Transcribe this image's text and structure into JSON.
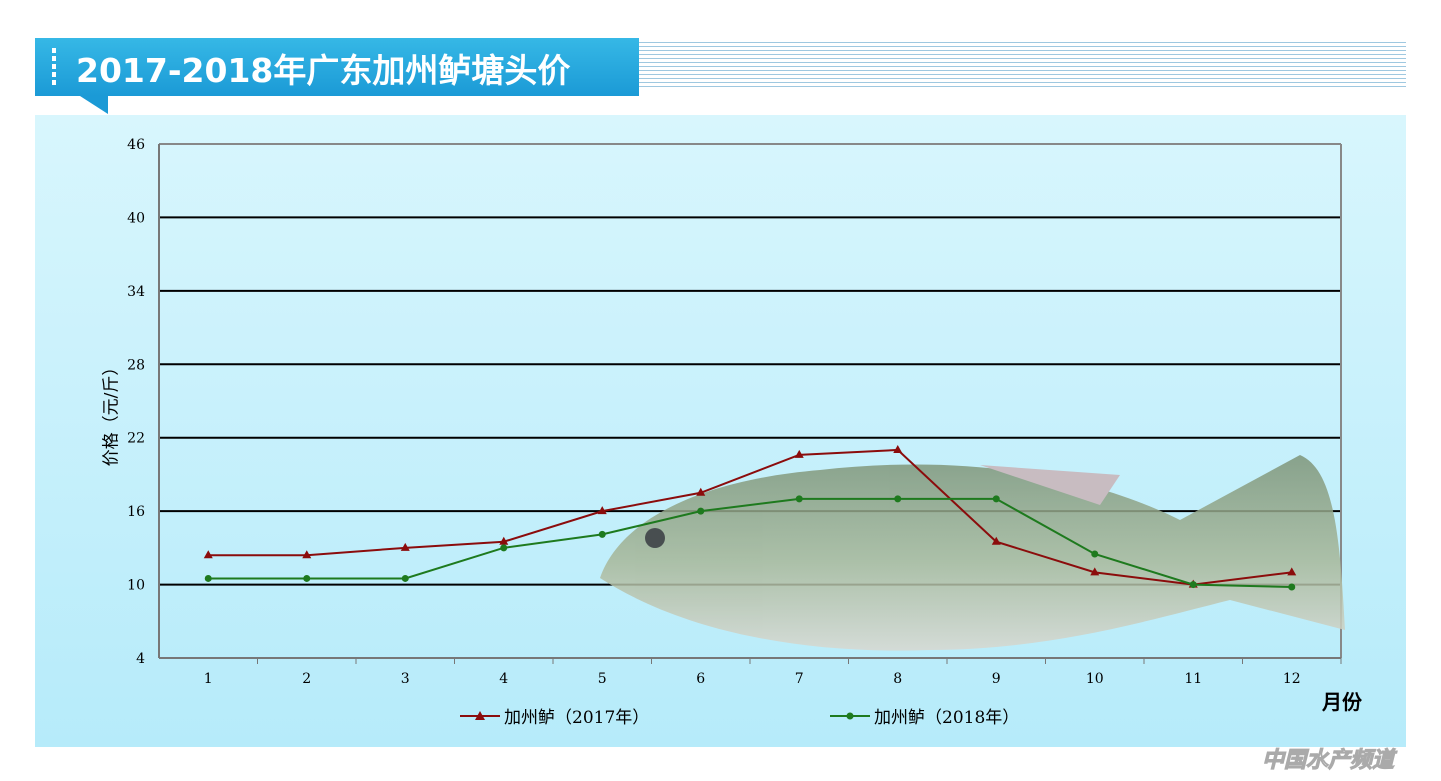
{
  "title": "2017-2018年广东加州鲈塘头价",
  "watermark": "中国水产频道",
  "chart_data": {
    "type": "line",
    "title": "2017-2018年广东加州鲈塘头价",
    "xlabel": "月份",
    "ylabel": "价格（元/斤）",
    "categories": [
      "1",
      "2",
      "3",
      "4",
      "5",
      "6",
      "7",
      "8",
      "9",
      "10",
      "11",
      "12"
    ],
    "yticks": [
      4,
      10,
      16,
      22,
      28,
      34,
      40,
      46
    ],
    "ylim": [
      4,
      46
    ],
    "grid": true,
    "legend": "bottom",
    "series": [
      {
        "name": "加州鲈（2017年）",
        "color": "#8b0c0c",
        "marker": "triangle",
        "values": [
          12.4,
          12.4,
          13,
          13.5,
          16,
          17.5,
          20.6,
          21,
          13.5,
          11,
          10,
          11
        ]
      },
      {
        "name": "加州鲈（2018年）",
        "color": "#1e7a1e",
        "marker": "circle",
        "values": [
          10.5,
          10.5,
          10.5,
          13,
          14.1,
          16,
          17,
          17,
          17,
          12.5,
          10,
          9.8
        ]
      }
    ]
  }
}
